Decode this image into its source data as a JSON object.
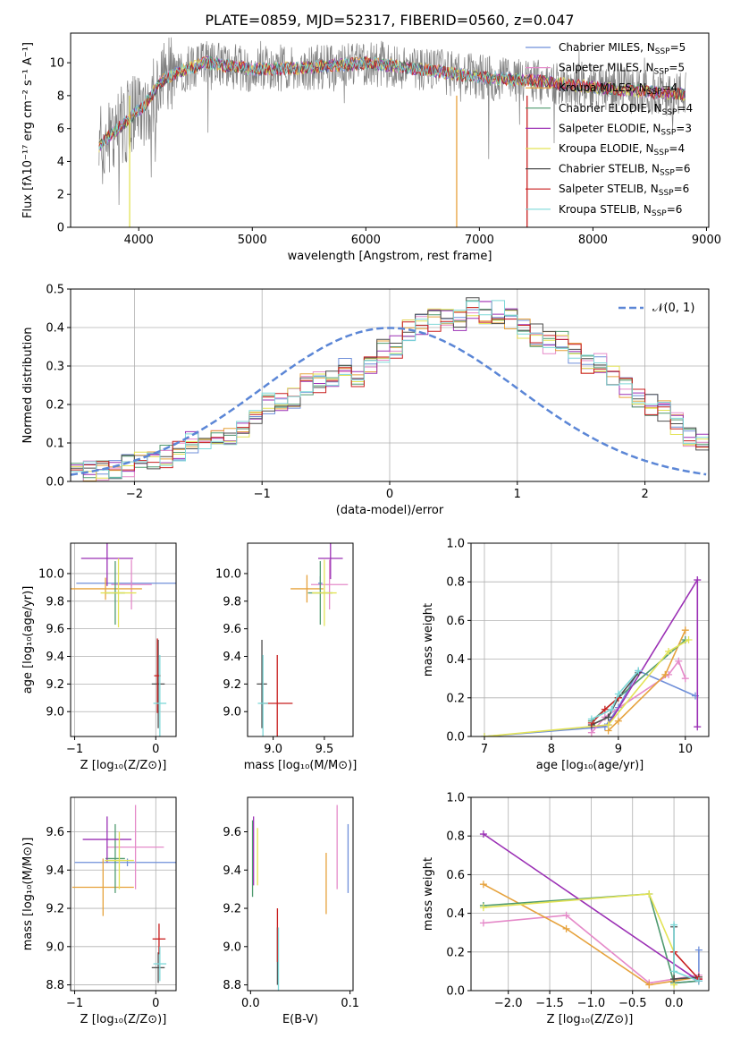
{
  "figure": {
    "title": "PLATE=0859, MJD=52317, FIBERID=0560, z=0.047"
  },
  "colors": {
    "models": [
      "#6f8fd9",
      "#e58ac9",
      "#e6a23c",
      "#4f9a6f",
      "#9b30b5",
      "#e3e356",
      "#4d4d4d",
      "#c81e1e",
      "#7dd8d8"
    ],
    "data_spectrum": "#808080",
    "gauss": "#5b86d6",
    "grid": "#b0b0b0"
  },
  "legend_spectrum": [
    {
      "name": "Chabrier MILES",
      "n": "5"
    },
    {
      "name": "Salpeter MILES",
      "n": "5"
    },
    {
      "name": "Kroupa MILES",
      "n": "4"
    },
    {
      "name": "Chabrier ELODIE",
      "n": "4"
    },
    {
      "name": "Salpeter ELODIE",
      "n": "3"
    },
    {
      "name": "Kroupa ELODIE",
      "n": "4"
    },
    {
      "name": "Chabrier STELIB",
      "n": "6"
    },
    {
      "name": "Salpeter STELIB",
      "n": "6"
    },
    {
      "name": "Kroupa STELIB",
      "n": "6"
    }
  ],
  "legend_nssp_prefix": "N",
  "legend_nssp_sub": "SSP",
  "legend_nssp_suffix": "=",
  "gauss_legend": "𝒩(0, 1)",
  "chart_data": [
    {
      "id": "spectrum",
      "type": "line",
      "xlabel": "wavelength [Angstrom, rest frame]",
      "ylabel": "Flux [fλ10⁻¹⁷ erg cm⁻² s⁻¹ A⁻¹]",
      "xlim": [
        3400,
        9020
      ],
      "ylim": [
        0,
        11.8
      ],
      "xticks": [
        4000,
        5000,
        6000,
        7000,
        8000,
        9000
      ],
      "yticks": [
        0,
        2,
        4,
        6,
        8,
        10
      ],
      "data_wavelength_range": [
        3650,
        8820
      ],
      "model_wavelength_range": [
        3650,
        8820
      ],
      "continuum_knots": [
        [
          3650,
          4.9
        ],
        [
          3750,
          5.6
        ],
        [
          3850,
          6.2
        ],
        [
          3950,
          6.8
        ],
        [
          4050,
          7.4
        ],
        [
          4200,
          8.9
        ],
        [
          4400,
          9.6
        ],
        [
          4600,
          10.0
        ],
        [
          5000,
          9.6
        ],
        [
          5500,
          9.7
        ],
        [
          6000,
          10.0
        ],
        [
          6500,
          9.6
        ],
        [
          7000,
          9.1
        ],
        [
          7500,
          8.9
        ],
        [
          8000,
          8.5
        ],
        [
          8500,
          8.2
        ],
        [
          8820,
          8.1
        ]
      ],
      "grid": false
    },
    {
      "id": "residuals",
      "type": "histogram",
      "xlabel": "(data-model)/error",
      "ylabel": "Normed distribution",
      "xlim": [
        -2.5,
        2.5
      ],
      "ylim": [
        0,
        0.5
      ],
      "xticks": [
        -2,
        -1,
        0,
        1,
        2
      ],
      "yticks": [
        0.0,
        0.1,
        0.2,
        0.3,
        0.4,
        0.5
      ],
      "bin_edges_start": -2.5,
      "bin_width": 0.1,
      "mean_profile": [
        0.02,
        0.025,
        0.03,
        0.035,
        0.04,
        0.05,
        0.06,
        0.065,
        0.08,
        0.1,
        0.1,
        0.11,
        0.12,
        0.14,
        0.16,
        0.2,
        0.2,
        0.22,
        0.25,
        0.26,
        0.26,
        0.29,
        0.27,
        0.3,
        0.34,
        0.35,
        0.39,
        0.41,
        0.42,
        0.43,
        0.42,
        0.45,
        0.44,
        0.44,
        0.42,
        0.4,
        0.38,
        0.36,
        0.37,
        0.33,
        0.3,
        0.31,
        0.28,
        0.24,
        0.22,
        0.2,
        0.18,
        0.15,
        0.12,
        0.1,
        0.09,
        0.08,
        0.06,
        0.06,
        0.05,
        0.04,
        0.035,
        0.03,
        0.025,
        0.02
      ],
      "gauss_mean": 0,
      "gauss_sigma": 1,
      "grid": true
    },
    {
      "id": "age_vs_Z",
      "type": "errorbar",
      "xlabel": "Z [log₁₀(Z/Z⊙)]",
      "ylabel": "age  [log₁₀(age/yr)]",
      "xlim": [
        -1.05,
        0.25
      ],
      "ylim": [
        8.82,
        10.22
      ],
      "xticks": [
        -1,
        0
      ],
      "yticks": [
        9.0,
        9.2,
        9.4,
        9.6,
        9.8,
        10.0
      ],
      "points": [
        {
          "c": 0,
          "x": -0.3,
          "xerr": 0.68,
          "y": 9.93,
          "yerr": 0.02
        },
        {
          "c": 1,
          "x": -0.3,
          "xerr": 0.25,
          "y": 9.92,
          "yerr": 0.18
        },
        {
          "c": 2,
          "x": -0.62,
          "xerr": 0.45,
          "y": 9.89,
          "yerr": 0.08
        },
        {
          "c": 3,
          "x": -0.5,
          "xerr": 0.12,
          "y": 9.86,
          "yerr": 0.23
        },
        {
          "c": 4,
          "x": -0.6,
          "xerr": 0.32,
          "y": 10.11,
          "yerr": 0.2
        },
        {
          "c": 5,
          "x": -0.46,
          "xerr": 0.22,
          "y": 9.86,
          "yerr": 0.25
        },
        {
          "c": 6,
          "x": 0.03,
          "xerr": 0.08,
          "y": 9.2,
          "yerr": 0.32
        },
        {
          "c": 7,
          "x": 0.02,
          "xerr": 0.04,
          "y": 9.26,
          "yerr": 0.27
        },
        {
          "c": 8,
          "x": 0.05,
          "xerr": 0.08,
          "y": 9.06,
          "yerr": 0.35
        }
      ],
      "grid": true
    },
    {
      "id": "age_vs_mass",
      "type": "errorbar",
      "xlabel": "mass [log₁₀(M/M⊙)]",
      "ylabel": "",
      "xlim": [
        8.75,
        9.78
      ],
      "ylim": [
        8.82,
        10.22
      ],
      "xticks": [
        9.0,
        9.5
      ],
      "yticks": [
        9.0,
        9.2,
        9.4,
        9.6,
        9.8,
        10.0
      ],
      "points": [
        {
          "c": 0,
          "x": 9.46,
          "xerr": 0.02,
          "y": 9.93,
          "yerr": 0.05
        },
        {
          "c": 1,
          "x": 9.55,
          "xerr": 0.18,
          "y": 9.92,
          "yerr": 0.18
        },
        {
          "c": 2,
          "x": 9.33,
          "xerr": 0.16,
          "y": 9.89,
          "yerr": 0.1
        },
        {
          "c": 3,
          "x": 9.46,
          "xerr": 0.12,
          "y": 9.86,
          "yerr": 0.23
        },
        {
          "c": 4,
          "x": 9.56,
          "xerr": 0.12,
          "y": 10.11,
          "yerr": 0.15
        },
        {
          "c": 5,
          "x": 9.5,
          "xerr": 0.12,
          "y": 9.86,
          "yerr": 0.24
        },
        {
          "c": 6,
          "x": 8.89,
          "xerr": 0.05,
          "y": 9.2,
          "yerr": 0.32
        },
        {
          "c": 7,
          "x": 9.04,
          "xerr": 0.15,
          "y": 9.06,
          "yerr": 0.35
        },
        {
          "c": 8,
          "x": 8.9,
          "xerr": 0.05,
          "y": 9.06,
          "yerr": 0.35
        }
      ],
      "grid": false
    },
    {
      "id": "massweight_vs_age",
      "type": "line",
      "xlabel": "age  [log₁₀(age/yr)]",
      "ylabel": "mass weight",
      "xlim": [
        6.8,
        10.35
      ],
      "ylim": [
        0,
        1.0
      ],
      "xticks": [
        7,
        8,
        9,
        10
      ],
      "yticks": [
        0.0,
        0.2,
        0.4,
        0.6,
        0.8,
        1.0
      ],
      "series": [
        {
          "c": 0,
          "x": [
            7.0,
            8.8,
            9.0,
            9.3,
            10.15
          ],
          "y": [
            0.0,
            0.05,
            0.15,
            0.34,
            0.21
          ]
        },
        {
          "c": 1,
          "x": [
            8.6,
            8.8,
            9.75,
            9.9,
            10.0
          ],
          "y": [
            0.02,
            0.1,
            0.32,
            0.39,
            0.3
          ]
        },
        {
          "c": 2,
          "x": [
            8.85,
            9.0,
            9.7,
            10.0
          ],
          "y": [
            0.03,
            0.08,
            0.32,
            0.55
          ]
        },
        {
          "c": 3,
          "x": [
            8.6,
            9.0,
            10.0
          ],
          "y": [
            0.08,
            0.2,
            0.5
          ]
        },
        {
          "c": 4,
          "x": [
            8.6,
            8.85,
            10.18,
            10.18
          ],
          "y": [
            0.05,
            0.06,
            0.81,
            0.05
          ]
        },
        {
          "c": 5,
          "x": [
            7.0,
            8.85,
            9.75,
            10.05
          ],
          "y": [
            0.0,
            0.06,
            0.44,
            0.5
          ]
        },
        {
          "c": 6,
          "x": [
            8.6,
            8.85,
            9.0,
            9.3
          ],
          "y": [
            0.06,
            0.1,
            0.2,
            0.33
          ]
        },
        {
          "c": 7,
          "x": [
            8.6,
            8.8,
            9.0
          ],
          "y": [
            0.07,
            0.14,
            0.2
          ]
        },
        {
          "c": 8,
          "x": [
            8.6,
            8.9,
            9.0,
            9.3
          ],
          "y": [
            0.09,
            0.14,
            0.22,
            0.34
          ]
        }
      ],
      "grid": true
    },
    {
      "id": "mass_vs_Z",
      "type": "errorbar",
      "xlabel": "Z [log₁₀(Z/Z⊙)]",
      "ylabel": "mass [log₁₀(M/M⊙)]",
      "xlim": [
        -1.05,
        0.25
      ],
      "ylim": [
        8.77,
        9.78
      ],
      "xticks": [
        -1,
        0
      ],
      "yticks": [
        8.8,
        9.0,
        9.2,
        9.4,
        9.6
      ],
      "points": [
        {
          "c": 0,
          "x": -0.35,
          "xerr": 0.65,
          "y": 9.44,
          "yerr": 0.02
        },
        {
          "c": 1,
          "x": -0.25,
          "xerr": 0.35,
          "y": 9.52,
          "yerr": 0.22
        },
        {
          "c": 2,
          "x": -0.65,
          "xerr": 0.38,
          "y": 9.31,
          "yerr": 0.15
        },
        {
          "c": 3,
          "x": -0.5,
          "xerr": 0.12,
          "y": 9.46,
          "yerr": 0.18
        },
        {
          "c": 4,
          "x": -0.6,
          "xerr": 0.3,
          "y": 9.56,
          "yerr": 0.12
        },
        {
          "c": 5,
          "x": -0.45,
          "xerr": 0.18,
          "y": 9.45,
          "yerr": 0.15
        },
        {
          "c": 6,
          "x": 0.03,
          "xerr": 0.08,
          "y": 8.89,
          "yerr": 0.08
        },
        {
          "c": 7,
          "x": 0.04,
          "xerr": 0.08,
          "y": 9.04,
          "yerr": 0.08
        },
        {
          "c": 8,
          "x": 0.05,
          "xerr": 0.08,
          "y": 8.91,
          "yerr": 0.09
        }
      ],
      "grid": true
    },
    {
      "id": "mass_vs_EBV",
      "type": "errorbar",
      "xlabel": "E(B-V)",
      "ylabel": "",
      "xlim": [
        -0.003,
        0.103
      ],
      "ylim": [
        8.77,
        9.78
      ],
      "xticks": [
        0.0,
        0.1
      ],
      "yticks": [
        8.8,
        9.0,
        9.2,
        9.4,
        9.6
      ],
      "points": [
        {
          "c": 0,
          "x": 0.098,
          "xerr": 0,
          "y": 9.46,
          "yerr": 0.18
        },
        {
          "c": 1,
          "x": 0.087,
          "xerr": 0,
          "y": 9.52,
          "yerr": 0.22
        },
        {
          "c": 2,
          "x": 0.076,
          "xerr": 0,
          "y": 9.33,
          "yerr": 0.16
        },
        {
          "c": 3,
          "x": 0.002,
          "xerr": 0,
          "y": 9.46,
          "yerr": 0.2
        },
        {
          "c": 4,
          "x": 0.003,
          "xerr": 0,
          "y": 9.5,
          "yerr": 0.18
        },
        {
          "c": 5,
          "x": 0.007,
          "xerr": 0,
          "y": 9.47,
          "yerr": 0.15
        },
        {
          "c": 6,
          "x": 0.027,
          "xerr": 0,
          "y": 8.95,
          "yerr": 0.15
        },
        {
          "c": 7,
          "x": 0.027,
          "xerr": 0,
          "y": 9.06,
          "yerr": 0.14
        },
        {
          "c": 8,
          "x": 0.028,
          "xerr": 0,
          "y": 8.93,
          "yerr": 0.17
        }
      ],
      "grid": false
    },
    {
      "id": "massweight_vs_Z",
      "type": "line",
      "xlabel": "Z [log₁₀(Z/Z⊙)]",
      "ylabel": "mass weight",
      "xlim": [
        -2.45,
        0.42
      ],
      "ylim": [
        0,
        1.0
      ],
      "xticks": [
        -2.0,
        -1.5,
        -1.0,
        -0.5,
        0.0
      ],
      "yticks": [
        0.0,
        0.2,
        0.4,
        0.6,
        0.8,
        1.0
      ],
      "series": [
        {
          "c": 0,
          "x": [
            0.0,
            0.3,
            0.3,
            0.3
          ],
          "y": [
            0.04,
            0.05,
            0.21,
            0.05
          ]
        },
        {
          "c": 1,
          "x": [
            -2.3,
            -1.3,
            -0.3,
            0.3
          ],
          "y": [
            0.35,
            0.39,
            0.04,
            0.08
          ]
        },
        {
          "c": 2,
          "x": [
            -2.3,
            -1.3,
            -0.3,
            0.3
          ],
          "y": [
            0.55,
            0.32,
            0.03,
            0.07
          ]
        },
        {
          "c": 3,
          "x": [
            -2.3,
            -0.3,
            0.0,
            0.3
          ],
          "y": [
            0.44,
            0.5,
            0.04,
            0.05
          ]
        },
        {
          "c": 4,
          "x": [
            -2.3,
            0.3,
            0.3
          ],
          "y": [
            0.81,
            0.05,
            0.06
          ]
        },
        {
          "c": 5,
          "x": [
            -2.3,
            -0.3,
            0.0,
            0.0
          ],
          "y": [
            0.43,
            0.5,
            0.2,
            0.03
          ]
        },
        {
          "c": 6,
          "x": [
            0.0,
            0.0,
            0.3
          ],
          "y": [
            0.33,
            0.06,
            0.07
          ]
        },
        {
          "c": 7,
          "x": [
            0.0,
            0.3
          ],
          "y": [
            0.2,
            0.06
          ]
        },
        {
          "c": 8,
          "x": [
            0.0,
            0.0,
            0.3
          ],
          "y": [
            0.34,
            0.1,
            0.05
          ]
        }
      ],
      "grid": true
    }
  ]
}
